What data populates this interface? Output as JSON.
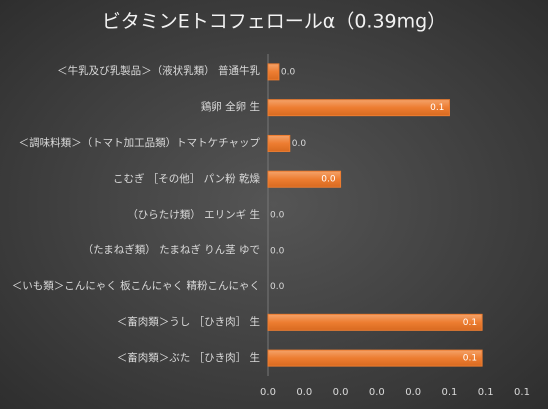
{
  "chart_data": {
    "type": "barh",
    "title": "ビタミンEトコフェロールα（0.39mg）",
    "categories": [
      "＜牛乳及び乳製品＞（液状乳類） 普通牛乳",
      "鶏卵 全卵 生",
      "＜調味料類＞（トマト加工品類）トマトケチャップ",
      "こむぎ ［その他］ パン粉 乾燥",
      "（ひらたけ類） エリンギ 生",
      "（たまねぎ類） たまねぎ りん茎 ゆで",
      "＜いも類＞こんにゃく 板こんにゃく 精粉こんにゃく",
      "＜畜肉類＞うし ［ひき肉］ 生",
      "＜畜肉類＞ぶた ［ひき肉］ 生"
    ],
    "values": [
      0.003,
      0.05,
      0.006,
      0.02,
      0,
      0,
      0,
      0.059,
      0.059
    ],
    "value_labels": [
      "0.0",
      "0.1",
      "0.0",
      "0.0",
      "0.0",
      "0.0",
      "0.0",
      "0.1",
      "0.1"
    ],
    "color": "#ed7d31",
    "xlim": [
      0,
      0.07
    ],
    "xticks": [
      {
        "value": 0,
        "label": "0.0"
      },
      {
        "value": 0.01,
        "label": "0.0"
      },
      {
        "value": 0.02,
        "label": "0.0"
      },
      {
        "value": 0.03,
        "label": "0.0"
      },
      {
        "value": 0.04,
        "label": "0.0"
      },
      {
        "value": 0.05,
        "label": "0.1"
      },
      {
        "value": 0.06,
        "label": "0.1"
      },
      {
        "value": 0.07,
        "label": "0.1"
      }
    ],
    "grid": false
  }
}
